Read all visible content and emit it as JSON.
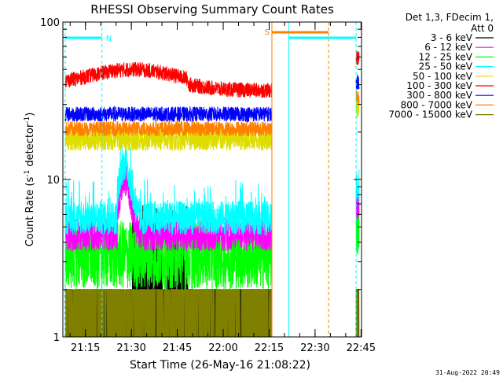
{
  "chart_data": {
    "type": "line",
    "title": "RHESSI Observing Summary Count Rates",
    "xlabel": "Start Time (26-May-16 21:08:22)",
    "ylabel_main": "Count Rate (s",
    "ylabel_sup1": "-1",
    "ylabel_mid": " detector",
    "ylabel_sup2": "-1",
    "ylabel_end": ")",
    "y_scale": "log",
    "ylim": [
      1,
      100
    ],
    "xlim_minutes": [
      0,
      96
    ],
    "x_ticks": [
      {
        "label": "21:15",
        "t": 6.6
      },
      {
        "label": "21:30",
        "t": 21.6
      },
      {
        "label": "21:45",
        "t": 36.6
      },
      {
        "label": "22:00",
        "t": 51.6
      },
      {
        "label": "22:15",
        "t": 66.6
      },
      {
        "label": "22:30",
        "t": 81.6
      },
      {
        "label": "22:45",
        "t": 96.6
      }
    ],
    "y_ticks": [
      {
        "label": "1",
        "v": 1
      },
      {
        "label": "10",
        "v": 10
      },
      {
        "label": "100",
        "v": 100
      }
    ],
    "legend_header": [
      "Det 1,3, FDecim 1,",
      "Att 0"
    ],
    "legend_placement": "right",
    "series": [
      {
        "name": "3 - 6 keV",
        "color": "#000000",
        "level": 1.6,
        "noise": 0.35,
        "kind": "sparse_low"
      },
      {
        "name": "6 - 12 keV",
        "color": "#ff00ff",
        "level": 4.5,
        "noise": 0.18,
        "kind": "band"
      },
      {
        "name": "12 - 25 keV",
        "color": "#00ff00",
        "level": 3.3,
        "noise": 0.22,
        "kind": "band_low"
      },
      {
        "name": "25 - 50 keV",
        "color": "#00ffff",
        "level": 5.7,
        "noise": 0.18,
        "kind": "band"
      },
      {
        "name": "50 - 100 keV",
        "color": "#dddd00",
        "level": 18,
        "noise": 0.12,
        "kind": "band"
      },
      {
        "name": "100 - 300 keV",
        "color": "#ff0000",
        "level": 40,
        "noise": 0.08,
        "kind": "band_arc"
      },
      {
        "name": "300 - 800 keV",
        "color": "#0000ff",
        "level": 26,
        "noise": 0.08,
        "kind": "band"
      },
      {
        "name": "800 - 7000 keV",
        "color": "#ff8000",
        "level": 21,
        "noise": 0.08,
        "kind": "band"
      },
      {
        "name": "7000 - 15000 keV",
        "color": "#808000",
        "level": 1.5,
        "noise": 0.25,
        "kind": "sparse_low"
      }
    ],
    "data_windows_minutes": [
      [
        0,
        67.5
      ],
      [
        95,
        96
      ]
    ],
    "annotations": [
      {
        "label": "N",
        "kind": "cyan_bar",
        "t0": 0,
        "t1": 12
      },
      {
        "label": "S",
        "kind": "orange_bar",
        "t0": 67.5,
        "t1": 86
      },
      {
        "label": "",
        "kind": "cyan_bar",
        "t0": 73,
        "t1": 95
      }
    ],
    "vertical_markers": [
      {
        "t": 0,
        "color": "#00ffff",
        "style": "dashed"
      },
      {
        "t": 12,
        "color": "#00ffff",
        "style": "dashed"
      },
      {
        "t": 67.5,
        "color": "#ff8000",
        "style": "solid"
      },
      {
        "t": 73,
        "color": "#00ffff",
        "style": "solid"
      },
      {
        "t": 86,
        "color": "#ff8000",
        "style": "dashed"
      },
      {
        "t": 95,
        "color": "#00ffff",
        "style": "dashed"
      }
    ]
  },
  "footer": {
    "date": "31-Aug-2022 20:49"
  }
}
